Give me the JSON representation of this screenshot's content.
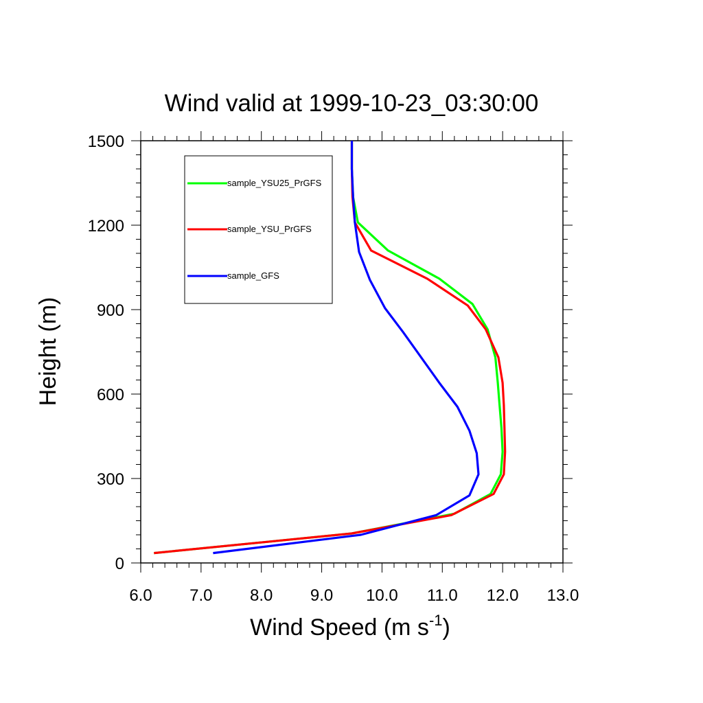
{
  "chart_data": {
    "type": "line",
    "title": "Wind valid at 1999-10-23_03:30:00",
    "xlabel": "Wind Speed (m s",
    "xlabel_superscript": "-1",
    "xlabel_suffix": ")",
    "ylabel": "Height (m)",
    "xlim": [
      6.0,
      13.0
    ],
    "ylim": [
      0,
      1500
    ],
    "x_ticks": [
      6.0,
      7.0,
      8.0,
      9.0,
      10.0,
      11.0,
      12.0,
      13.0
    ],
    "x_tick_labels": [
      "6.0",
      "7.0",
      "8.0",
      "9.0",
      "10.0",
      "11.0",
      "12.0",
      "13.0"
    ],
    "y_ticks": [
      0,
      300,
      600,
      900,
      1200,
      1500
    ],
    "y_tick_labels": [
      "0",
      "300",
      "600",
      "900",
      "1200",
      "1500"
    ],
    "grid": false,
    "legend_position": "top-left",
    "series": [
      {
        "name": "sample_YSU25_PrGFS",
        "color": "#00ff00",
        "points": [
          [
            6.22,
            35
          ],
          [
            9.5,
            105
          ],
          [
            11.2,
            175
          ],
          [
            11.8,
            245
          ],
          [
            11.97,
            315
          ],
          [
            12.0,
            395
          ],
          [
            11.98,
            480
          ],
          [
            11.95,
            560
          ],
          [
            11.92,
            640
          ],
          [
            11.88,
            730
          ],
          [
            11.75,
            830
          ],
          [
            11.5,
            920
          ],
          [
            10.95,
            1010
          ],
          [
            10.1,
            1110
          ],
          [
            9.6,
            1210
          ],
          [
            9.52,
            1300
          ],
          [
            9.5,
            1400
          ],
          [
            9.5,
            1500
          ]
        ]
      },
      {
        "name": "sample_YSU_PrGFS",
        "color": "#ff0000",
        "points": [
          [
            6.22,
            35
          ],
          [
            9.5,
            105
          ],
          [
            11.15,
            170
          ],
          [
            11.85,
            245
          ],
          [
            12.02,
            315
          ],
          [
            12.04,
            395
          ],
          [
            12.03,
            480
          ],
          [
            12.02,
            560
          ],
          [
            12.0,
            640
          ],
          [
            11.93,
            730
          ],
          [
            11.72,
            830
          ],
          [
            11.42,
            915
          ],
          [
            10.75,
            1010
          ],
          [
            9.82,
            1110
          ],
          [
            9.55,
            1210
          ],
          [
            9.51,
            1300
          ],
          [
            9.5,
            1400
          ],
          [
            9.5,
            1500
          ]
        ]
      },
      {
        "name": "sample_GFS",
        "color": "#0000ff",
        "points": [
          [
            7.2,
            35
          ],
          [
            9.65,
            100
          ],
          [
            10.9,
            170
          ],
          [
            11.45,
            240
          ],
          [
            11.6,
            315
          ],
          [
            11.57,
            390
          ],
          [
            11.45,
            470
          ],
          [
            11.25,
            555
          ],
          [
            10.95,
            640
          ],
          [
            10.35,
            820
          ],
          [
            10.05,
            905
          ],
          [
            9.8,
            1005
          ],
          [
            9.62,
            1105
          ],
          [
            9.55,
            1210
          ],
          [
            9.52,
            1300
          ],
          [
            9.5,
            1400
          ],
          [
            9.5,
            1500
          ]
        ]
      }
    ]
  }
}
